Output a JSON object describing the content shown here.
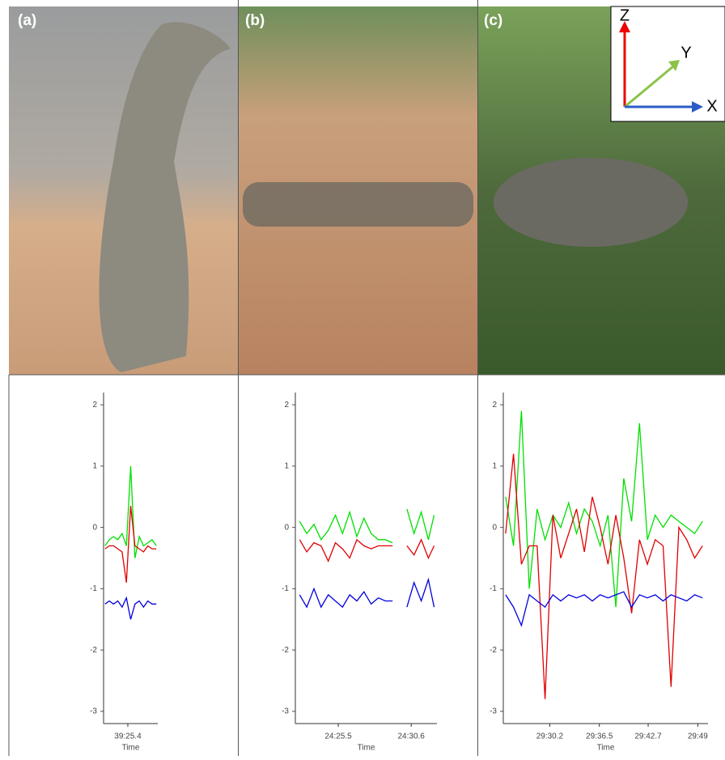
{
  "panels": [
    {
      "label": "(a)"
    },
    {
      "label": "(b)"
    },
    {
      "label": "(c)"
    }
  ],
  "axes_inset": {
    "z": "Z",
    "y": "Y",
    "x": "X"
  },
  "chart_data": [
    {
      "type": "line",
      "x_label": "Time",
      "xlim": [
        2363.7,
        2367.5
      ],
      "xticks": [
        {
          "value": 2365.4,
          "label": "39:25.4"
        }
      ],
      "ylim": [
        -3.2,
        2.2
      ],
      "yticks": [
        -3,
        -2,
        -1,
        0,
        1,
        2
      ],
      "x": [
        2363.8,
        2364.1,
        2364.4,
        2364.7,
        2365.0,
        2365.3,
        2365.6,
        2365.9,
        2366.2,
        2366.5,
        2366.8,
        2367.1,
        2367.4
      ],
      "series": [
        {
          "name": "Y",
          "color": "#00e000",
          "values": [
            -0.3,
            -0.2,
            -0.15,
            -0.2,
            -0.1,
            -0.3,
            1.0,
            -0.5,
            -0.15,
            -0.3,
            -0.25,
            -0.2,
            -0.3
          ]
        },
        {
          "name": "Z",
          "color": "#e00000",
          "values": [
            -0.35,
            -0.3,
            -0.3,
            -0.35,
            -0.4,
            -0.9,
            0.35,
            -0.3,
            -0.35,
            -0.4,
            -0.3,
            -0.35,
            -0.35
          ]
        },
        {
          "name": "X",
          "color": "#0000e0",
          "values": [
            -1.25,
            -1.2,
            -1.25,
            -1.2,
            -1.3,
            -1.15,
            -1.5,
            -1.25,
            -1.2,
            -1.3,
            -1.2,
            -1.25,
            -1.25
          ]
        }
      ]
    },
    {
      "type": "line",
      "x_label": "Time",
      "xlim": [
        1462.5,
        1472.4
      ],
      "xticks": [
        {
          "value": 1465.5,
          "label": "24:25.5"
        },
        {
          "value": 1470.6,
          "label": "24:30.6"
        }
      ],
      "ylim": [
        -3.2,
        2.2
      ],
      "yticks": [
        -3,
        -2,
        -1,
        0,
        1,
        2
      ],
      "x": [
        1462.8,
        1463.3,
        1463.8,
        1464.3,
        1464.8,
        1465.3,
        1465.8,
        1466.3,
        1466.8,
        1467.3,
        1467.8,
        1468.3,
        1468.8,
        1469.3,
        1469.8,
        1470.3,
        1470.8,
        1471.3,
        1471.8,
        1472.2
      ],
      "series": [
        {
          "name": "Y",
          "color": "#00e000",
          "values": [
            0.1,
            -0.1,
            0.05,
            -0.2,
            -0.05,
            0.2,
            -0.1,
            0.25,
            -0.15,
            0.15,
            -0.1,
            -0.2,
            -0.2,
            -0.25,
            null,
            0.3,
            -0.1,
            0.25,
            -0.2,
            0.2
          ]
        },
        {
          "name": "Z",
          "color": "#e00000",
          "values": [
            -0.2,
            -0.4,
            -0.25,
            -0.3,
            -0.55,
            -0.25,
            -0.35,
            -0.5,
            -0.2,
            -0.3,
            -0.35,
            -0.3,
            -0.3,
            -0.3,
            null,
            -0.3,
            -0.45,
            -0.2,
            -0.5,
            -0.3
          ]
        },
        {
          "name": "X",
          "color": "#0000e0",
          "values": [
            -1.1,
            -1.3,
            -1.0,
            -1.3,
            -1.1,
            -1.2,
            -1.3,
            -1.1,
            -1.2,
            -1.05,
            -1.25,
            -1.15,
            -1.2,
            -1.2,
            null,
            -1.3,
            -0.9,
            -1.2,
            -0.85,
            -1.3
          ]
        }
      ]
    },
    {
      "type": "line",
      "x_label": "Time",
      "xlim": [
        1764.3,
        1790.3
      ],
      "xticks": [
        {
          "value": 1770.2,
          "label": "29:30.2"
        },
        {
          "value": 1776.5,
          "label": "29:36.5"
        },
        {
          "value": 1782.7,
          "label": "29:42.7"
        },
        {
          "value": 1789,
          "label": "29:49"
        }
      ],
      "ylim": [
        -3.2,
        2.2
      ],
      "yticks": [
        -3,
        -2,
        -1,
        0,
        1,
        2
      ],
      "x": [
        1764.6,
        1765.6,
        1766.6,
        1767.6,
        1768.6,
        1769.6,
        1770.6,
        1771.6,
        1772.6,
        1773.6,
        1774.6,
        1775.6,
        1776.6,
        1777.6,
        1778.6,
        1779.6,
        1780.6,
        1781.6,
        1782.6,
        1783.6,
        1784.6,
        1785.6,
        1786.6,
        1787.6,
        1788.6,
        1789.6
      ],
      "series": [
        {
          "name": "Y",
          "color": "#00e000",
          "values": [
            0.5,
            -0.3,
            1.9,
            -1.0,
            0.3,
            -0.2,
            0.2,
            0.0,
            0.4,
            -0.1,
            0.3,
            0.1,
            -0.3,
            0.2,
            -1.3,
            0.8,
            0.1,
            1.7,
            -0.2,
            0.2,
            0.0,
            0.2,
            0.1,
            0.0,
            -0.1,
            0.1
          ]
        },
        {
          "name": "Z",
          "color": "#e00000",
          "values": [
            -0.1,
            1.2,
            -0.6,
            -0.3,
            -0.3,
            -2.8,
            0.2,
            -0.5,
            -0.1,
            0.3,
            -0.4,
            0.5,
            0.0,
            -0.6,
            0.2,
            -0.5,
            -1.4,
            -0.2,
            -0.6,
            -0.2,
            -0.3,
            -2.6,
            0.0,
            -0.2,
            -0.5,
            -0.3
          ]
        },
        {
          "name": "X",
          "color": "#0000e0",
          "values": [
            -1.1,
            -1.3,
            -1.6,
            -1.1,
            -1.2,
            -1.3,
            -1.1,
            -1.2,
            -1.1,
            -1.15,
            -1.1,
            -1.2,
            -1.1,
            -1.15,
            -1.1,
            -1.05,
            -1.3,
            -1.1,
            -1.15,
            -1.1,
            -1.2,
            -1.1,
            -1.15,
            -1.2,
            -1.1,
            -1.15
          ]
        }
      ]
    }
  ]
}
